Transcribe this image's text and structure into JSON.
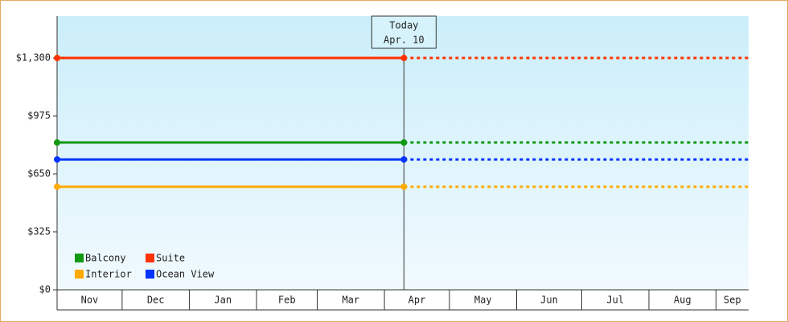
{
  "chart_data": {
    "type": "line",
    "x": [
      "Nov",
      "Apr. 10"
    ],
    "months": [
      "Nov",
      "Dec",
      "Jan",
      "Feb",
      "Mar",
      "Apr",
      "May",
      "Jun",
      "Jul",
      "Aug",
      "Sep"
    ],
    "today": {
      "label": "Today",
      "date": "Apr. 10"
    },
    "projection": true,
    "series": [
      {
        "name": "Balcony",
        "color": "#119911",
        "values": [
          826,
          826
        ]
      },
      {
        "name": "Suite",
        "color": "#ff3300",
        "values": [
          1300,
          1300
        ]
      },
      {
        "name": "Interior",
        "color": "#ffaa00",
        "values": [
          578,
          578
        ]
      },
      {
        "name": "Ocean View",
        "color": "#0033ff",
        "values": [
          731,
          731
        ]
      }
    ],
    "ylim": [
      0,
      1535
    ],
    "yticks": [
      {
        "value": 0,
        "label": "$0"
      },
      {
        "value": 325,
        "label": "$325"
      },
      {
        "value": 650,
        "label": "$650"
      },
      {
        "value": 975,
        "label": "$975"
      },
      {
        "value": 1300,
        "label": "$1,300"
      }
    ],
    "grid": false,
    "legend": "bottom-left"
  }
}
